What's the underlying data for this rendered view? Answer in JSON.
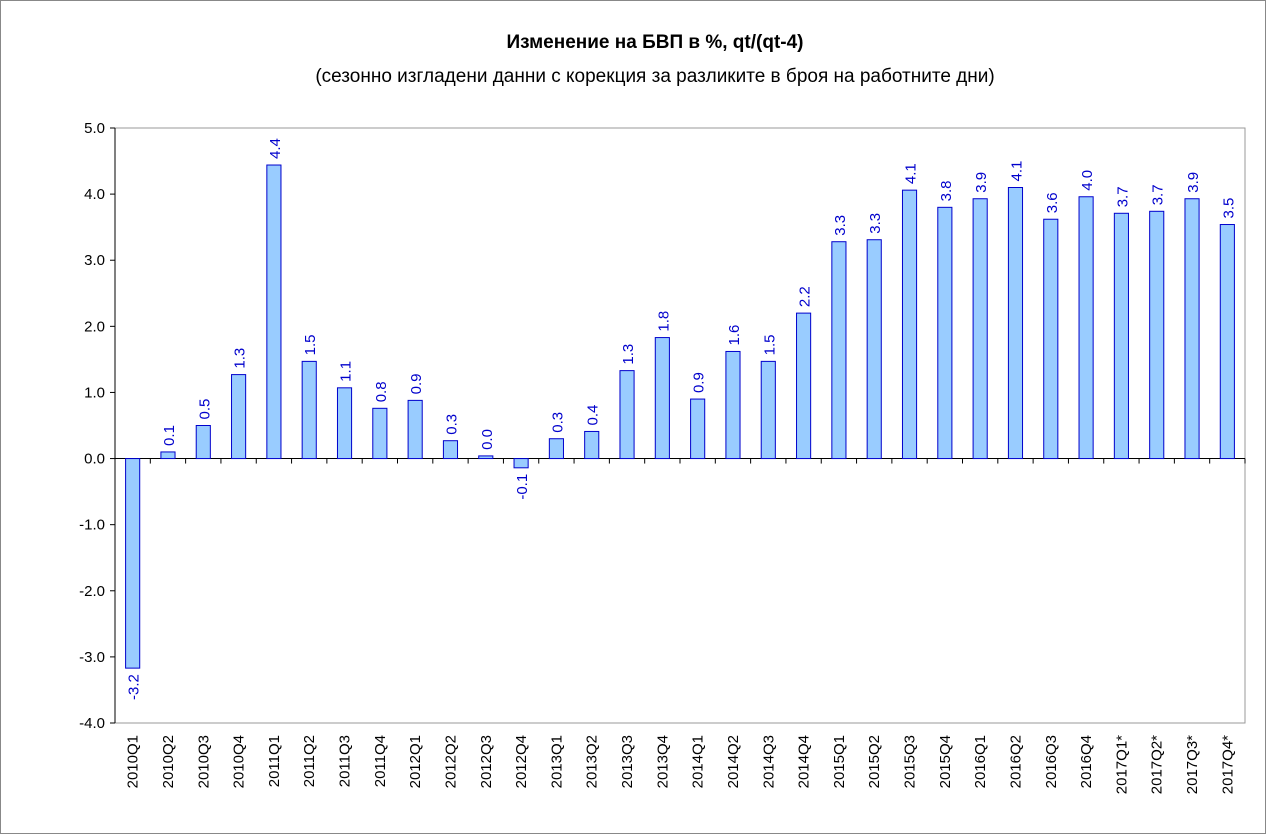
{
  "chart_data": {
    "type": "bar",
    "title": "Изменение на БВП в %, qt/(qt-4)",
    "subtitle": "(сезонно изгладени данни с корекция за разликите в броя на работните дни)",
    "categories": [
      "2010Q1",
      "2010Q2",
      "2010Q3",
      "2010Q4",
      "2011Q1",
      "2011Q2",
      "2011Q3",
      "2011Q4",
      "2012Q1",
      "2012Q2",
      "2012Q3",
      "2012Q4",
      "2013Q1",
      "2013Q2",
      "2013Q3",
      "2013Q4",
      "2014Q1",
      "2014Q2",
      "2014Q3",
      "2014Q4",
      "2015Q1",
      "2015Q2",
      "2015Q3",
      "2015Q4",
      "2016Q1",
      "2016Q2",
      "2016Q3",
      "2016Q4",
      "2017Q1*",
      "2017Q2*",
      "2017Q3*",
      "2017Q4*"
    ],
    "values": [
      -3.17,
      0.1,
      0.5,
      1.27,
      4.44,
      1.47,
      1.07,
      0.76,
      0.88,
      0.27,
      0.04,
      -0.14,
      0.3,
      0.41,
      1.33,
      1.83,
      0.9,
      1.62,
      1.47,
      2.2,
      3.28,
      3.31,
      4.06,
      3.8,
      3.93,
      4.1,
      3.62,
      3.96,
      3.71,
      3.74,
      3.93,
      3.54
    ],
    "value_labels": [
      "-3.2",
      "0.1",
      "0.5",
      "1.3",
      "4.4",
      "1.5",
      "1.1",
      "0.8",
      "0.9",
      "0.3",
      "0.0",
      "-0.1",
      "0.3",
      "0.4",
      "1.3",
      "1.8",
      "0.9",
      "1.6",
      "1.5",
      "2.2",
      "3.3",
      "3.3",
      "4.1",
      "3.8",
      "3.9",
      "4.1",
      "3.6",
      "4.0",
      "3.7",
      "3.7",
      "3.9",
      "3.5"
    ],
    "color": "#99ccff",
    "edge_color": "#0000cc",
    "label_color": "#0000cc",
    "ylim": [
      -4,
      5
    ],
    "yticks": [
      {
        "value": -4,
        "label": "-4.0"
      },
      {
        "value": -3,
        "label": "-3.0"
      },
      {
        "value": -2,
        "label": "-2.0"
      },
      {
        "value": -1,
        "label": "-1.0"
      },
      {
        "value": 0,
        "label": "0.0"
      },
      {
        "value": 1,
        "label": "1.0"
      },
      {
        "value": 2,
        "label": "2.0"
      },
      {
        "value": 3,
        "label": "3.0"
      },
      {
        "value": 4,
        "label": "4.0"
      },
      {
        "value": 5,
        "label": "5.0"
      }
    ],
    "grid": false
  }
}
